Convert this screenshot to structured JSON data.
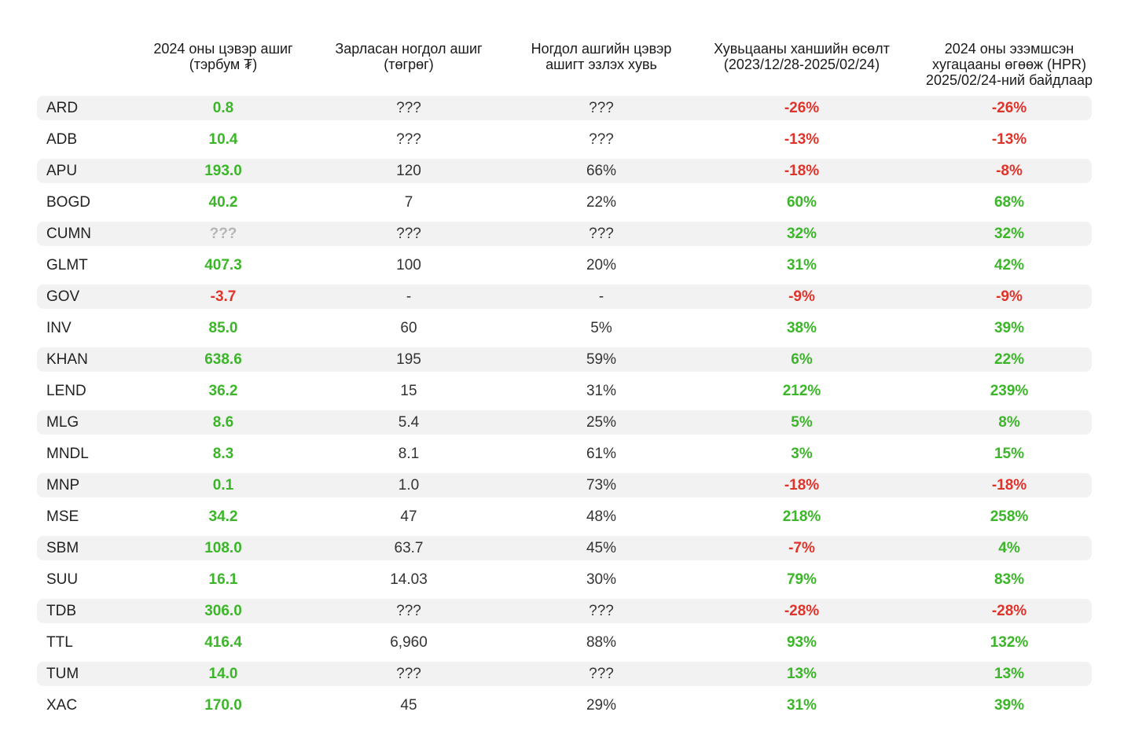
{
  "chart_data": {
    "type": "table",
    "columns": [
      "",
      "2024 оны цэвэр ашиг\n(тэрбум ₮)",
      "Зарласан ногдол ашиг\n(төгрөг)",
      "Ногдол ашгийн цэвэр\nашигт эзлэх хувь",
      "Хувьцааны ханшийн өсөлт\n(2023/12/28-2025/02/24)",
      "2024 оны эзэмшсэн\nхугацааны өгөөж (HPR)\n2025/02/24-ний байдлаар"
    ],
    "rows": [
      {
        "ticker": "ARD",
        "profit": "0.8",
        "dividend": "???",
        "payout": "???",
        "growth": "-26%",
        "hpr": "-26%"
      },
      {
        "ticker": "ADB",
        "profit": "10.4",
        "dividend": "???",
        "payout": "???",
        "growth": "-13%",
        "hpr": "-13%"
      },
      {
        "ticker": "APU",
        "profit": "193.0",
        "dividend": "120",
        "payout": "66%",
        "growth": "-18%",
        "hpr": "-8%"
      },
      {
        "ticker": "BOGD",
        "profit": "40.2",
        "dividend": "7",
        "payout": "22%",
        "growth": "60%",
        "hpr": "68%"
      },
      {
        "ticker": "CUMN",
        "profit": "???",
        "dividend": "???",
        "payout": "???",
        "growth": "32%",
        "hpr": "32%"
      },
      {
        "ticker": "GLMT",
        "profit": "407.3",
        "dividend": "100",
        "payout": "20%",
        "growth": "31%",
        "hpr": "42%"
      },
      {
        "ticker": "GOV",
        "profit": "-3.7",
        "dividend": "-",
        "payout": "-",
        "growth": "-9%",
        "hpr": "-9%"
      },
      {
        "ticker": "INV",
        "profit": "85.0",
        "dividend": "60",
        "payout": "5%",
        "growth": "38%",
        "hpr": "39%"
      },
      {
        "ticker": "KHAN",
        "profit": "638.6",
        "dividend": "195",
        "payout": "59%",
        "growth": "6%",
        "hpr": "22%"
      },
      {
        "ticker": "LEND",
        "profit": "36.2",
        "dividend": "15",
        "payout": "31%",
        "growth": "212%",
        "hpr": "239%"
      },
      {
        "ticker": "MLG",
        "profit": "8.6",
        "dividend": "5.4",
        "payout": "25%",
        "growth": "5%",
        "hpr": "8%"
      },
      {
        "ticker": "MNDL",
        "profit": "8.3",
        "dividend": "8.1",
        "payout": "61%",
        "growth": "3%",
        "hpr": "15%"
      },
      {
        "ticker": "MNP",
        "profit": "0.1",
        "dividend": "1.0",
        "payout": "73%",
        "growth": "-18%",
        "hpr": "-18%"
      },
      {
        "ticker": "MSE",
        "profit": "34.2",
        "dividend": "47",
        "payout": "48%",
        "growth": "218%",
        "hpr": "258%"
      },
      {
        "ticker": "SBM",
        "profit": "108.0",
        "dividend": "63.7",
        "payout": "45%",
        "growth": "-7%",
        "hpr": "4%"
      },
      {
        "ticker": "SUU",
        "profit": "16.1",
        "dividend": "14.03",
        "payout": "30%",
        "growth": "79%",
        "hpr": "83%"
      },
      {
        "ticker": "TDB",
        "profit": "306.0",
        "dividend": "???",
        "payout": "???",
        "growth": "-28%",
        "hpr": "-28%"
      },
      {
        "ticker": "TTL",
        "profit": "416.4",
        "dividend": "6,960",
        "payout": "88%",
        "growth": "93%",
        "hpr": "132%"
      },
      {
        "ticker": "TUM",
        "profit": "14.0",
        "dividend": "???",
        "payout": "???",
        "growth": "13%",
        "hpr": "13%"
      },
      {
        "ticker": "XAC",
        "profit": "170.0",
        "dividend": "45",
        "payout": "29%",
        "growth": "31%",
        "hpr": "39%"
      }
    ]
  },
  "colors": {
    "positive": "#3cb52a",
    "negative": "#e0342b",
    "unknown": "#b5b5b5",
    "stripe": "#f2f2f2"
  }
}
